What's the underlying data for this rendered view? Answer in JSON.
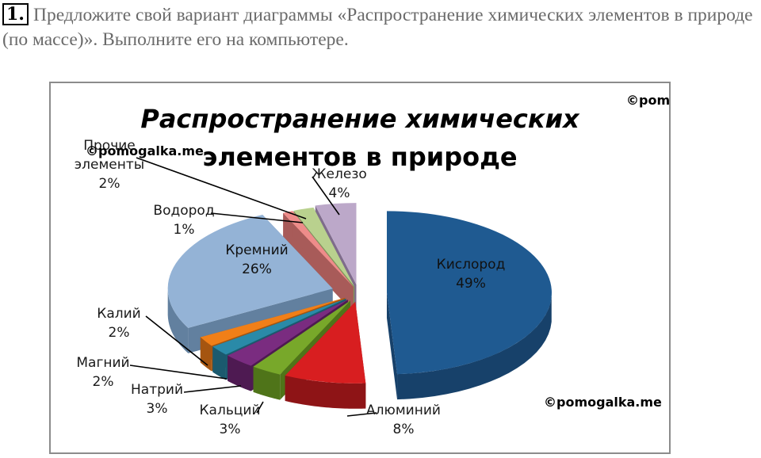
{
  "task": {
    "number": "1.",
    "text": "Предложите свой вариант диаграммы «Распространение химических элементов в природе (по массе)». Выполните его на компьютере."
  },
  "watermarks": [
    "©pomogalka.me",
    "©pomogalka.me",
    "©pomogalka.me"
  ],
  "chart_data": {
    "type": "pie",
    "title_lines": [
      "Распространение химических",
      "элементов в природе"
    ],
    "series": [
      {
        "name": "Кислород",
        "value": 49,
        "label": "49%",
        "color": "#1f5a91",
        "side": "#17416a",
        "placement": "inside"
      },
      {
        "name": "Алюминий",
        "value": 8,
        "label": "8%",
        "color": "#d81e20",
        "side": "#8e1416",
        "placement": "outside"
      },
      {
        "name": "Кальций",
        "value": 3,
        "label": "3%",
        "color": "#78a82a",
        "side": "#4f7419",
        "placement": "outside"
      },
      {
        "name": "Натрий",
        "value": 3,
        "label": "3%",
        "color": "#7a2c80",
        "side": "#4e1a52",
        "placement": "outside"
      },
      {
        "name": "Магний",
        "value": 2,
        "label": "2%",
        "color": "#2a8aa8",
        "side": "#1b5a6e",
        "placement": "outside"
      },
      {
        "name": "Калий",
        "value": 2,
        "label": "2%",
        "color": "#f07f18",
        "side": "#a55510",
        "placement": "outside"
      },
      {
        "name": "Кремний",
        "value": 26,
        "label": "26%",
        "color": "#94b3d6",
        "side": "#62809f",
        "placement": "inside"
      },
      {
        "name": "Водород",
        "value": 1,
        "label": "1%",
        "color": "#ee8c8a",
        "side": "#a85b59",
        "placement": "outside"
      },
      {
        "name": "Прочие элементы",
        "value": 2,
        "label": "2%",
        "color": "#b9d18e",
        "side": "#7f955c",
        "placement": "outside"
      },
      {
        "name": "Железо",
        "value": 4,
        "label": "4%",
        "color": "#bca8c9",
        "side": "#7f6c8c",
        "placement": "outside"
      }
    ]
  }
}
